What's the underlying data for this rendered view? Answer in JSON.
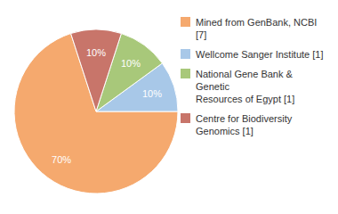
{
  "chart_data": {
    "type": "pie",
    "categories": [
      "Mined from GenBank, NCBI [7]",
      "Wellcome Sanger Institute [1]",
      "National Gene Bank & Genetic\nResources of Egypt [1]",
      "Centre for Biodiversity\nGenomics [1]"
    ],
    "values": [
      70,
      10,
      10,
      10
    ],
    "value_labels": [
      "70%",
      "10%",
      "10%",
      "10%"
    ],
    "colors": [
      "#F5A96E",
      "#A8C8E8",
      "#A8C87A",
      "#C8756A"
    ],
    "data_labels": true,
    "legend": "right"
  }
}
